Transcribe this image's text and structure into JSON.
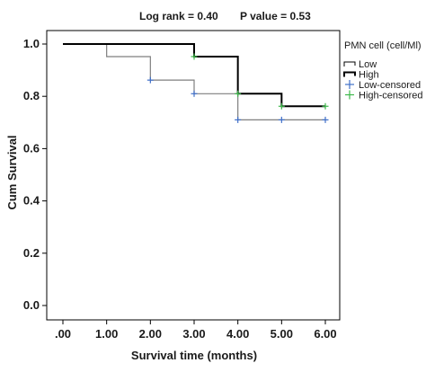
{
  "chart_data": {
    "type": "line",
    "title_parts": [
      "Log rank = 0.40",
      "P value = 0.53"
    ],
    "xlabel": "Survival time (months)",
    "ylabel": "Cum Survival",
    "xlim": [
      0,
      6
    ],
    "ylim": [
      0,
      1.0
    ],
    "x_ticks": [
      ".00",
      "1.00",
      "2.00",
      "3.00",
      "4.00",
      "5.00",
      "6.00"
    ],
    "y_ticks": [
      "0.0",
      "0.2",
      "0.4",
      "0.6",
      "0.8",
      "1.0"
    ],
    "grid": false,
    "legend": {
      "title": "PMN cell (cell/Ml)",
      "placement": "top-right outside",
      "entries": [
        "Low",
        "High",
        "Low-censored",
        "High-censored"
      ]
    },
    "series": [
      {
        "name": "Low",
        "kind": "step",
        "color": "#7f7f7f",
        "points": [
          [
            0,
            1.0
          ],
          [
            1,
            0.952
          ],
          [
            2,
            0.862
          ],
          [
            3,
            0.81
          ],
          [
            4,
            0.71
          ],
          [
            6,
            0.71
          ]
        ]
      },
      {
        "name": "High",
        "kind": "step",
        "color": "#000000",
        "points": [
          [
            0,
            1.0
          ],
          [
            3,
            0.952
          ],
          [
            4,
            0.81
          ],
          [
            5,
            0.762
          ],
          [
            6,
            0.762
          ]
        ]
      },
      {
        "name": "Low-censored",
        "kind": "censor",
        "color": "#3f6fc8",
        "points": [
          [
            2,
            0.862
          ],
          [
            3,
            0.81
          ],
          [
            4,
            0.71
          ],
          [
            5,
            0.71
          ],
          [
            6,
            0.71
          ]
        ]
      },
      {
        "name": "High-censored",
        "kind": "censor",
        "color": "#3cb84a",
        "points": [
          [
            3,
            0.952
          ],
          [
            4,
            0.81
          ],
          [
            5,
            0.762
          ],
          [
            6,
            0.762
          ]
        ]
      }
    ]
  }
}
